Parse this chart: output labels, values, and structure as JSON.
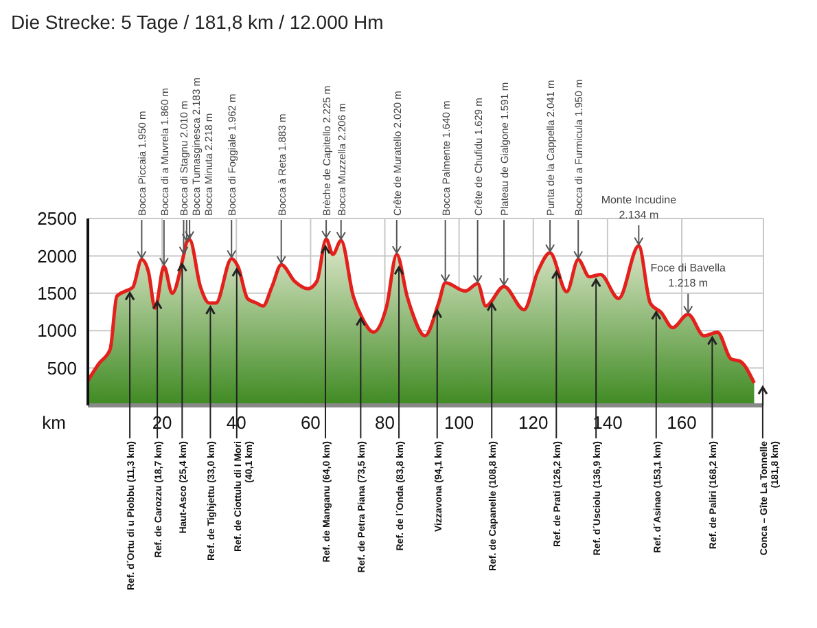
{
  "chart_data": {
    "type": "area",
    "title": "Die Strecke: 5 Tage / 181,8 km / 12.000 Hm",
    "xlabel": "km",
    "x": [
      0,
      3,
      6,
      7.8,
      10.2,
      12.1,
      14.5,
      16.3,
      18.1,
      20.5,
      22.7,
      25.8,
      26.6,
      27.4,
      30.3,
      32.7,
      34.5,
      38.7,
      40.5,
      43,
      45.4,
      47.2,
      49.6,
      52.1,
      55.7,
      59.3,
      61.7,
      64.2,
      66,
      68.2,
      71.5,
      73.9,
      76.9,
      80.5,
      83.2,
      86,
      87.2,
      90.8,
      94.5,
      96.3,
      101.7,
      105,
      107.2,
      112.1,
      117.5,
      121.2,
      124.5,
      129,
      132.1,
      135.1,
      138.1,
      143,
      148.4,
      151.5,
      154.5,
      157.5,
      161.7,
      166,
      169.6,
      173.3,
      175.7,
      179.5
    ],
    "series": [
      {
        "color": "#e3211c",
        "values": [
          330,
          560,
          750,
          1460,
          1530,
          1580,
          1950,
          1790,
          1300,
          1860,
          1500,
          2010,
          2183,
          2218,
          1590,
          1370,
          1370,
          1962,
          1850,
          1430,
          1370,
          1330,
          1590,
          1883,
          1660,
          1560,
          1660,
          2225,
          2020,
          2206,
          1460,
          1170,
          980,
          1330,
          2020,
          1460,
          1270,
          930,
          1370,
          1640,
          1530,
          1629,
          1330,
          1591,
          1280,
          1790,
          2041,
          1520,
          1950,
          1720,
          1750,
          1430,
          2134,
          1370,
          1240,
          1040,
          1218,
          930,
          980,
          620,
          590,
          300
        ]
      }
    ],
    "xlim": [
      0,
      182
    ],
    "xticks": [
      20,
      40,
      60,
      80,
      100,
      120,
      140,
      160
    ],
    "ylim": [
      0,
      2500
    ],
    "yticks": [
      500,
      1000,
      1500,
      2000,
      2500
    ],
    "grid": true,
    "marker": "none",
    "annotations": [
      {
        "text": "Bocca Piccaia 1.950 m",
        "x": 14.5,
        "y": 1950
      },
      {
        "text": "Bocca di a Muvrela 1.860 m",
        "x": 20.5,
        "y": 1860
      },
      {
        "text": "Bocca di Stagnu 2.010 m",
        "x": 25.8,
        "y": 2010
      },
      {
        "text": "Bocca Tumasginesca 2.183 m",
        "x": 26.6,
        "y": 2183
      },
      {
        "text": "Bocca Minuta 2.218 m",
        "x": 27.4,
        "y": 2218
      },
      {
        "text": "Bocca di Foggiale 1.962 m",
        "x": 38.7,
        "y": 1962
      },
      {
        "text": "Bocca à Reta 1.883 m",
        "x": 52.1,
        "y": 1883
      },
      {
        "text": "Brèche de Capitello 2.225 m",
        "x": 64.2,
        "y": 2225
      },
      {
        "text": "Bocca Muzzella 2.206 m",
        "x": 68.2,
        "y": 2206
      },
      {
        "text": "Crête de Muratello 2.020 m",
        "x": 83.2,
        "y": 2020
      },
      {
        "text": "Bocca Palmente 1.640 m",
        "x": 96.3,
        "y": 1640
      },
      {
        "text": "Crête de Chufidu 1.629 m",
        "x": 105,
        "y": 1629
      },
      {
        "text": "Plateau de Gialgone 1.591 m",
        "x": 112.1,
        "y": 1591
      },
      {
        "text": "Punta de la Cappella 2.041 m",
        "x": 124.5,
        "y": 2041
      },
      {
        "text": "Bocca di a Furmicula 1.950 m",
        "x": 132.1,
        "y": 1950
      },
      {
        "text": "Monte Incudine\n2.134 m",
        "x": 148.4,
        "y": 2134
      },
      {
        "text": "Foce di Bavella\n1.218 m",
        "x": 161.7,
        "y": 1218
      }
    ],
    "ref_lines": [
      {
        "axis": "x",
        "value": 11.3,
        "label": "Ref. d´Ortu di u Piobbu (11,3 km)",
        "color": "#222222"
      },
      {
        "axis": "x",
        "value": 18.7,
        "label": "Ref. de Carozzu (18,7 km)",
        "color": "#222222"
      },
      {
        "axis": "x",
        "value": 25.4,
        "label": "Haut-Asco (25,4 km)",
        "color": "#222222"
      },
      {
        "axis": "x",
        "value": 33.0,
        "label": "Ref. de Tighjettu (33,0 km)",
        "color": "#222222"
      },
      {
        "axis": "x",
        "value": 40.1,
        "label": "Ref. de Ciottulu di I Mori (40,1 km)",
        "color": "#222222"
      },
      {
        "axis": "x",
        "value": 64.0,
        "label": "Ref. de Manganu (64,0 km)",
        "color": "#222222"
      },
      {
        "axis": "x",
        "value": 73.5,
        "label": "Ref. de Petra Piana (73,5 km)",
        "color": "#222222"
      },
      {
        "axis": "x",
        "value": 83.8,
        "label": "Ref. de l´Onda (83,8 km)",
        "color": "#222222"
      },
      {
        "axis": "x",
        "value": 94.1,
        "label": "Vizzavona (94,1 km)",
        "color": "#222222"
      },
      {
        "axis": "x",
        "value": 108.8,
        "label": "Ref. de Capanelle (108,8 km)",
        "color": "#222222"
      },
      {
        "axis": "x",
        "value": 126.2,
        "label": "Ref. de Prati (126,2 km)",
        "color": "#222222"
      },
      {
        "axis": "x",
        "value": 136.9,
        "label": "Ref. d´Usciolu (136,9 km)",
        "color": "#222222"
      },
      {
        "axis": "x",
        "value": 153.1,
        "label": "Ref. d´Asinao (153,1 km)",
        "color": "#222222"
      },
      {
        "axis": "x",
        "value": 168.2,
        "label": "Ref. de Paliri (168,2 km)",
        "color": "#222222"
      },
      {
        "axis": "x",
        "value": 181.8,
        "label": "Conca – Gîte La Tonnelle (181,8 km)",
        "color": "#222222"
      }
    ]
  }
}
